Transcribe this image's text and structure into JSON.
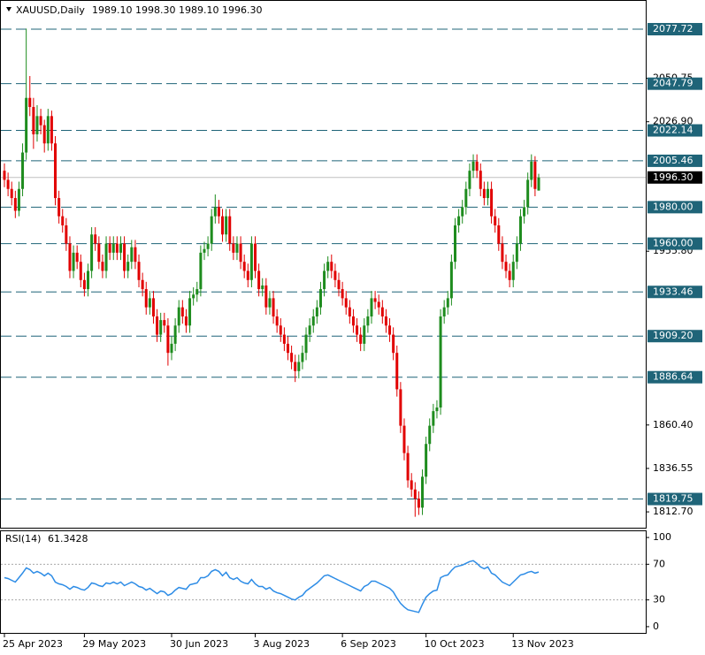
{
  "chart_data": {
    "type": "candlestick",
    "title": "XAUUSD,Daily",
    "header_ohlc": "1989.10 1998.30 1989.10 1996.30",
    "categories": [
      "25 Apr 2023",
      null,
      null,
      null,
      null,
      null,
      null,
      null,
      null,
      null,
      null,
      null,
      null,
      null,
      null,
      null,
      null,
      null,
      null,
      null,
      null,
      null,
      "29 May 2023",
      null,
      null,
      null,
      null,
      null,
      null,
      null,
      null,
      null,
      null,
      null,
      null,
      null,
      null,
      null,
      null,
      null,
      null,
      null,
      null,
      null,
      null,
      null,
      "30 Jun 2023",
      null,
      null,
      null,
      null,
      null,
      null,
      null,
      null,
      null,
      null,
      null,
      null,
      null,
      null,
      null,
      null,
      null,
      null,
      null,
      null,
      null,
      null,
      "3 Aug 2023",
      null,
      null,
      null,
      null,
      null,
      null,
      null,
      null,
      null,
      null,
      null,
      null,
      null,
      null,
      null,
      null,
      null,
      null,
      null,
      null,
      null,
      null,
      null,
      "6 Sep 2023",
      null,
      null,
      null,
      null,
      null,
      null,
      null,
      null,
      null,
      null,
      null,
      null,
      null,
      null,
      null,
      null,
      null,
      null,
      null,
      null,
      null,
      null,
      "10 Oct 2023",
      null,
      null,
      null,
      null,
      null,
      null,
      null,
      null,
      null,
      null,
      null,
      null,
      null,
      null,
      null,
      null,
      null,
      null,
      null,
      null,
      null,
      null,
      null,
      "13 Nov 2023",
      null,
      null,
      null,
      null,
      null,
      null,
      null
    ],
    "candles": [
      [
        2000,
        2004,
        1991,
        1995
      ],
      [
        1995,
        1999,
        1986,
        1990
      ],
      [
        1990,
        1994,
        1981,
        1985
      ],
      [
        1985,
        1989,
        1974,
        1978
      ],
      [
        1978,
        1994,
        1975,
        1990
      ],
      [
        1990,
        2015,
        1986,
        2010
      ],
      [
        2010,
        2078,
        2006,
        2040
      ],
      [
        2040,
        2052,
        2030,
        2035
      ],
      [
        2035,
        2040,
        2012,
        2020
      ],
      [
        2020,
        2036,
        2016,
        2030
      ],
      [
        2030,
        2034,
        2020,
        2025
      ],
      [
        2025,
        2028,
        2010,
        2015
      ],
      [
        2015,
        2034,
        2011,
        2030
      ],
      [
        2030,
        2033,
        2011,
        2015
      ],
      [
        2015,
        2019,
        1981,
        1985
      ],
      [
        1985,
        1989,
        1971,
        1975
      ],
      [
        1975,
        1979,
        1966,
        1970
      ],
      [
        1970,
        1974,
        1956,
        1960
      ],
      [
        1960,
        1964,
        1941,
        1945
      ],
      [
        1945,
        1959,
        1941,
        1955
      ],
      [
        1955,
        1959,
        1946,
        1950
      ],
      [
        1950,
        1954,
        1936,
        1940
      ],
      [
        1940,
        1944,
        1931,
        1935
      ],
      [
        1935,
        1949,
        1931,
        1945
      ],
      [
        1945,
        1969,
        1941,
        1965
      ],
      [
        1965,
        1969,
        1956,
        1960
      ],
      [
        1960,
        1964,
        1946,
        1950
      ],
      [
        1950,
        1954,
        1941,
        1945
      ],
      [
        1945,
        1964,
        1941,
        1960
      ],
      [
        1960,
        1964,
        1951,
        1955
      ],
      [
        1955,
        1964,
        1951,
        1960
      ],
      [
        1960,
        1964,
        1951,
        1955
      ],
      [
        1955,
        1964,
        1951,
        1960
      ],
      [
        1960,
        1964,
        1941,
        1945
      ],
      [
        1945,
        1954,
        1941,
        1950
      ],
      [
        1950,
        1962,
        1946,
        1958
      ],
      [
        1958,
        1962,
        1946,
        1950
      ],
      [
        1950,
        1954,
        1936,
        1940
      ],
      [
        1940,
        1944,
        1931,
        1935
      ],
      [
        1935,
        1939,
        1921,
        1925
      ],
      [
        1925,
        1934,
        1921,
        1930
      ],
      [
        1930,
        1934,
        1916,
        1920
      ],
      [
        1920,
        1924,
        1906,
        1910
      ],
      [
        1910,
        1922,
        1906,
        1918
      ],
      [
        1918,
        1922,
        1911,
        1915
      ],
      [
        1915,
        1919,
        1893,
        1900
      ],
      [
        1900,
        1909,
        1896,
        1905
      ],
      [
        1905,
        1919,
        1901,
        1915
      ],
      [
        1915,
        1929,
        1911,
        1925
      ],
      [
        1925,
        1929,
        1916,
        1920
      ],
      [
        1920,
        1924,
        1911,
        1915
      ],
      [
        1915,
        1934,
        1911,
        1930
      ],
      [
        1930,
        1936,
        1926,
        1932
      ],
      [
        1932,
        1939,
        1928,
        1935
      ],
      [
        1935,
        1959,
        1931,
        1955
      ],
      [
        1955,
        1961,
        1951,
        1957
      ],
      [
        1957,
        1964,
        1953,
        1960
      ],
      [
        1960,
        1979,
        1956,
        1975
      ],
      [
        1975,
        1987,
        1971,
        1980
      ],
      [
        1980,
        1984,
        1971,
        1975
      ],
      [
        1975,
        1979,
        1961,
        1965
      ],
      [
        1965,
        1979,
        1961,
        1975
      ],
      [
        1975,
        1979,
        1956,
        1960
      ],
      [
        1960,
        1964,
        1951,
        1955
      ],
      [
        1955,
        1964,
        1951,
        1960
      ],
      [
        1960,
        1964,
        1946,
        1950
      ],
      [
        1950,
        1954,
        1941,
        1945
      ],
      [
        1945,
        1949,
        1936,
        1940
      ],
      [
        1940,
        1964,
        1936,
        1960
      ],
      [
        1960,
        1964,
        1941,
        1945
      ],
      [
        1945,
        1949,
        1931,
        1935
      ],
      [
        1935,
        1941,
        1931,
        1937
      ],
      [
        1937,
        1941,
        1921,
        1925
      ],
      [
        1925,
        1934,
        1921,
        1930
      ],
      [
        1930,
        1934,
        1916,
        1920
      ],
      [
        1920,
        1924,
        1911,
        1915
      ],
      [
        1915,
        1919,
        1906,
        1910
      ],
      [
        1910,
        1914,
        1901,
        1905
      ],
      [
        1905,
        1909,
        1896,
        1900
      ],
      [
        1900,
        1904,
        1891,
        1895
      ],
      [
        1895,
        1899,
        1884,
        1890
      ],
      [
        1890,
        1899,
        1886,
        1895
      ],
      [
        1895,
        1904,
        1891,
        1900
      ],
      [
        1900,
        1914,
        1896,
        1910
      ],
      [
        1910,
        1919,
        1906,
        1915
      ],
      [
        1915,
        1924,
        1911,
        1920
      ],
      [
        1920,
        1929,
        1916,
        1925
      ],
      [
        1925,
        1939,
        1921,
        1935
      ],
      [
        1935,
        1949,
        1931,
        1945
      ],
      [
        1945,
        1953,
        1941,
        1950
      ],
      [
        1950,
        1954,
        1941,
        1945
      ],
      [
        1945,
        1949,
        1936,
        1940
      ],
      [
        1940,
        1944,
        1931,
        1935
      ],
      [
        1935,
        1939,
        1926,
        1930
      ],
      [
        1930,
        1934,
        1921,
        1925
      ],
      [
        1925,
        1929,
        1916,
        1920
      ],
      [
        1920,
        1924,
        1911,
        1915
      ],
      [
        1915,
        1919,
        1906,
        1910
      ],
      [
        1910,
        1914,
        1901,
        1905
      ],
      [
        1905,
        1919,
        1901,
        1915
      ],
      [
        1915,
        1924,
        1911,
        1920
      ],
      [
        1920,
        1934,
        1916,
        1930
      ],
      [
        1930,
        1934,
        1924,
        1928
      ],
      [
        1928,
        1932,
        1921,
        1925
      ],
      [
        1925,
        1929,
        1916,
        1920
      ],
      [
        1920,
        1924,
        1911,
        1915
      ],
      [
        1915,
        1919,
        1906,
        1910
      ],
      [
        1910,
        1914,
        1896,
        1900
      ],
      [
        1900,
        1904,
        1876,
        1880
      ],
      [
        1880,
        1884,
        1856,
        1860
      ],
      [
        1860,
        1864,
        1841,
        1845
      ],
      [
        1845,
        1849,
        1826,
        1830
      ],
      [
        1830,
        1834,
        1821,
        1825
      ],
      [
        1825,
        1829,
        1810,
        1820
      ],
      [
        1820,
        1824,
        1811,
        1815
      ],
      [
        1815,
        1836,
        1811,
        1832
      ],
      [
        1832,
        1854,
        1828,
        1850
      ],
      [
        1850,
        1864,
        1846,
        1860
      ],
      [
        1860,
        1872,
        1856,
        1868
      ],
      [
        1868,
        1874,
        1864,
        1870
      ],
      [
        1870,
        1924,
        1866,
        1920
      ],
      [
        1920,
        1929,
        1916,
        1925
      ],
      [
        1925,
        1934,
        1921,
        1930
      ],
      [
        1930,
        1954,
        1926,
        1950
      ],
      [
        1950,
        1974,
        1946,
        1970
      ],
      [
        1970,
        1979,
        1966,
        1975
      ],
      [
        1975,
        1984,
        1971,
        1980
      ],
      [
        1980,
        1994,
        1976,
        1990
      ],
      [
        1990,
        2004,
        1986,
        2000
      ],
      [
        2000,
        2009,
        1996,
        2005
      ],
      [
        2005,
        2009,
        1996,
        2000
      ],
      [
        2000,
        2004,
        1986,
        1990
      ],
      [
        1990,
        1994,
        1981,
        1985
      ],
      [
        1985,
        1994,
        1981,
        1990
      ],
      [
        1990,
        1994,
        1971,
        1975
      ],
      [
        1975,
        1979,
        1966,
        1970
      ],
      [
        1970,
        1974,
        1956,
        1960
      ],
      [
        1960,
        1964,
        1946,
        1950
      ],
      [
        1950,
        1954,
        1941,
        1945
      ],
      [
        1945,
        1949,
        1936,
        1940
      ],
      [
        1940,
        1954,
        1936,
        1950
      ],
      [
        1950,
        1964,
        1946,
        1960
      ],
      [
        1960,
        1979,
        1956,
        1975
      ],
      [
        1975,
        1984,
        1971,
        1980
      ],
      [
        1980,
        1999,
        1976,
        1995
      ],
      [
        1995,
        2009,
        1991,
        2005
      ],
      [
        2005,
        2008,
        1986,
        1990
      ],
      [
        1989.1,
        1998.3,
        1989.1,
        1996.3
      ]
    ],
    "colors": {
      "up": "#1e8c1e",
      "down": "#e10000"
    },
    "ylim": [
      1804,
      2091.8
    ],
    "yticks": [
      2050.75,
      {
        "value": 2026.9,
        "label": "2026.90"
      },
      {
        "value": 1955.8,
        "label": "1955.80"
      },
      {
        "value": 1860.4,
        "label": "1860.40"
      },
      1836.55,
      {
        "value": 1812.7,
        "label": "1812.70"
      }
    ],
    "levels": [
      2077.72,
      2047.79,
      2022.14,
      2005.46,
      {
        "value": 1980,
        "label": "1980.00"
      },
      {
        "value": 1960,
        "label": "1960.00"
      },
      1933.46,
      {
        "value": 1909.2,
        "label": "1909.20"
      },
      1886.64,
      1819.75
    ],
    "level_color": "#1f6478",
    "current_price": {
      "value": 1996.3,
      "label": "1996.30"
    },
    "rsi": {
      "title": "RSI(14)",
      "color": "#2d8ce6",
      "ylim": [
        -8,
        108
      ],
      "yticks": [
        100,
        70,
        30,
        0
      ],
      "levels": [
        70,
        30
      ],
      "values": [
        55,
        54,
        52,
        50,
        55,
        60,
        66,
        64,
        60,
        62,
        60,
        57,
        60,
        57,
        50,
        48,
        47,
        45,
        42,
        45,
        44,
        42,
        41,
        44,
        49,
        48,
        46,
        45,
        49,
        48,
        50,
        48,
        50,
        46,
        48,
        50,
        48,
        45,
        44,
        41,
        43,
        40,
        37,
        40,
        39,
        35,
        37,
        41,
        44,
        43,
        42,
        47,
        48,
        49,
        55,
        55,
        57,
        62,
        64,
        62,
        57,
        61,
        55,
        53,
        55,
        51,
        49,
        48,
        53,
        48,
        45,
        45,
        42,
        44,
        40,
        38,
        37,
        35,
        33,
        31,
        30,
        33,
        35,
        40,
        43,
        46,
        49,
        53,
        57,
        58,
        56,
        54,
        52,
        50,
        48,
        46,
        44,
        42,
        40,
        45,
        47,
        51,
        51,
        49,
        47,
        45,
        43,
        39,
        32,
        26,
        22,
        19,
        18,
        17,
        16,
        25,
        33,
        37,
        40,
        41,
        55,
        57,
        58,
        63,
        67,
        68,
        69,
        71,
        73,
        74,
        71,
        67,
        65,
        67,
        60,
        58,
        54,
        50,
        48,
        46,
        50,
        54,
        58,
        59,
        61,
        62,
        60,
        61.3428
      ]
    }
  }
}
